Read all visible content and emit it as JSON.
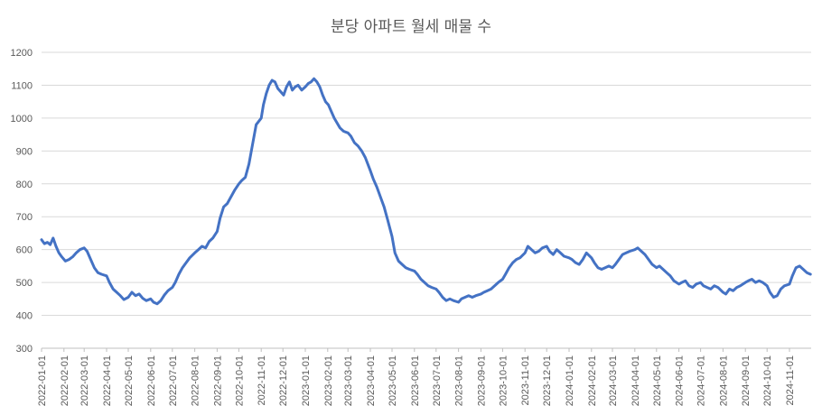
{
  "chart_data": {
    "type": "line",
    "title": "분당 아파트 월세 매물 수",
    "xlabel": "",
    "ylabel": "",
    "ylim": [
      300,
      1200
    ],
    "yticks": [
      300,
      400,
      500,
      600,
      700,
      800,
      900,
      1000,
      1100,
      1200
    ],
    "grid": true,
    "legend": "none",
    "x_tick_labels": [
      "2022-01-01",
      "2022-02-01",
      "2022-03-01",
      "2022-04-01",
      "2022-05-01",
      "2022-06-01",
      "2022-07-01",
      "2022-08-01",
      "2022-09-01",
      "2022-10-01",
      "2022-11-01",
      "2022-12-01",
      "2023-01-01",
      "2023-02-01",
      "2023-03-01",
      "2023-04-01",
      "2023-05-01",
      "2023-06-01",
      "2023-07-01",
      "2023-08-01",
      "2023-09-01",
      "2023-10-01",
      "2023-11-01",
      "2023-12-01",
      "2024-01-01",
      "2024-02-01",
      "2024-03-01",
      "2024-04-01",
      "2024-05-01",
      "2024-06-01",
      "2024-07-01",
      "2024-08-01",
      "2024-09-01",
      "2024-10-01",
      "2024-11-01"
    ],
    "x_range": [
      "2022-01-01",
      "2024-12-01"
    ],
    "series": [
      {
        "color": "#4472c4",
        "points": [
          [
            "2022-01-01",
            630
          ],
          [
            "2022-01-05",
            618
          ],
          [
            "2022-01-09",
            622
          ],
          [
            "2022-01-13",
            615
          ],
          [
            "2022-01-17",
            635
          ],
          [
            "2022-01-21",
            610
          ],
          [
            "2022-01-25",
            590
          ],
          [
            "2022-01-29",
            578
          ],
          [
            "2022-02-03",
            565
          ],
          [
            "2022-02-08",
            570
          ],
          [
            "2022-02-13",
            578
          ],
          [
            "2022-02-18",
            590
          ],
          [
            "2022-02-23",
            600
          ],
          [
            "2022-03-01",
            605
          ],
          [
            "2022-03-05",
            595
          ],
          [
            "2022-03-10",
            570
          ],
          [
            "2022-03-15",
            545
          ],
          [
            "2022-03-20",
            530
          ],
          [
            "2022-03-25",
            525
          ],
          [
            "2022-04-01",
            520
          ],
          [
            "2022-04-05",
            500
          ],
          [
            "2022-04-10",
            480
          ],
          [
            "2022-04-15",
            470
          ],
          [
            "2022-04-20",
            460
          ],
          [
            "2022-04-25",
            448
          ],
          [
            "2022-05-01",
            455
          ],
          [
            "2022-05-06",
            470
          ],
          [
            "2022-05-11",
            460
          ],
          [
            "2022-05-16",
            465
          ],
          [
            "2022-05-21",
            452
          ],
          [
            "2022-05-26",
            445
          ],
          [
            "2022-06-01",
            450
          ],
          [
            "2022-06-05",
            440
          ],
          [
            "2022-06-10",
            435
          ],
          [
            "2022-06-15",
            445
          ],
          [
            "2022-06-20",
            462
          ],
          [
            "2022-06-25",
            475
          ],
          [
            "2022-07-01",
            485
          ],
          [
            "2022-07-05",
            500
          ],
          [
            "2022-07-10",
            525
          ],
          [
            "2022-07-15",
            545
          ],
          [
            "2022-07-20",
            560
          ],
          [
            "2022-07-25",
            575
          ],
          [
            "2022-08-01",
            590
          ],
          [
            "2022-08-06",
            600
          ],
          [
            "2022-08-11",
            610
          ],
          [
            "2022-08-16",
            605
          ],
          [
            "2022-08-21",
            625
          ],
          [
            "2022-08-26",
            635
          ],
          [
            "2022-09-01",
            655
          ],
          [
            "2022-09-05",
            695
          ],
          [
            "2022-09-10",
            730
          ],
          [
            "2022-09-15",
            740
          ],
          [
            "2022-09-20",
            760
          ],
          [
            "2022-09-25",
            780
          ],
          [
            "2022-10-01",
            800
          ],
          [
            "2022-10-05",
            810
          ],
          [
            "2022-10-10",
            820
          ],
          [
            "2022-10-15",
            860
          ],
          [
            "2022-10-20",
            920
          ],
          [
            "2022-10-25",
            980
          ],
          [
            "2022-11-01",
            1000
          ],
          [
            "2022-11-04",
            1040
          ],
          [
            "2022-11-08",
            1075
          ],
          [
            "2022-11-12",
            1100
          ],
          [
            "2022-11-16",
            1115
          ],
          [
            "2022-11-20",
            1110
          ],
          [
            "2022-11-24",
            1090
          ],
          [
            "2022-11-28",
            1080
          ],
          [
            "2022-12-02",
            1070
          ],
          [
            "2022-12-06",
            1095
          ],
          [
            "2022-12-10",
            1110
          ],
          [
            "2022-12-14",
            1085
          ],
          [
            "2022-12-18",
            1095
          ],
          [
            "2022-12-22",
            1100
          ],
          [
            "2022-12-27",
            1085
          ],
          [
            "2023-01-01",
            1095
          ],
          [
            "2023-01-05",
            1105
          ],
          [
            "2023-01-09",
            1110
          ],
          [
            "2023-01-13",
            1120
          ],
          [
            "2023-01-17",
            1110
          ],
          [
            "2023-01-21",
            1095
          ],
          [
            "2023-01-25",
            1070
          ],
          [
            "2023-01-29",
            1050
          ],
          [
            "2023-02-02",
            1040
          ],
          [
            "2023-02-06",
            1020
          ],
          [
            "2023-02-10",
            1000
          ],
          [
            "2023-02-14",
            985
          ],
          [
            "2023-02-18",
            970
          ],
          [
            "2023-02-23",
            960
          ],
          [
            "2023-03-01",
            955
          ],
          [
            "2023-03-05",
            945
          ],
          [
            "2023-03-10",
            925
          ],
          [
            "2023-03-15",
            915
          ],
          [
            "2023-03-20",
            900
          ],
          [
            "2023-03-25",
            880
          ],
          [
            "2023-04-01",
            840
          ],
          [
            "2023-04-05",
            815
          ],
          [
            "2023-04-10",
            790
          ],
          [
            "2023-04-15",
            760
          ],
          [
            "2023-04-20",
            730
          ],
          [
            "2023-04-25",
            690
          ],
          [
            "2023-05-01",
            640
          ],
          [
            "2023-05-05",
            590
          ],
          [
            "2023-05-10",
            565
          ],
          [
            "2023-05-15",
            555
          ],
          [
            "2023-05-20",
            545
          ],
          [
            "2023-05-25",
            540
          ],
          [
            "2023-06-01",
            535
          ],
          [
            "2023-06-05",
            525
          ],
          [
            "2023-06-10",
            510
          ],
          [
            "2023-06-15",
            500
          ],
          [
            "2023-06-20",
            490
          ],
          [
            "2023-06-25",
            485
          ],
          [
            "2023-07-01",
            480
          ],
          [
            "2023-07-05",
            470
          ],
          [
            "2023-07-10",
            455
          ],
          [
            "2023-07-15",
            445
          ],
          [
            "2023-07-20",
            450
          ],
          [
            "2023-07-25",
            445
          ],
          [
            "2023-08-01",
            440
          ],
          [
            "2023-08-05",
            450
          ],
          [
            "2023-08-10",
            455
          ],
          [
            "2023-08-15",
            460
          ],
          [
            "2023-08-20",
            455
          ],
          [
            "2023-08-25",
            460
          ],
          [
            "2023-09-01",
            465
          ],
          [
            "2023-09-05",
            470
          ],
          [
            "2023-09-10",
            475
          ],
          [
            "2023-09-15",
            480
          ],
          [
            "2023-09-20",
            490
          ],
          [
            "2023-09-25",
            500
          ],
          [
            "2023-10-01",
            510
          ],
          [
            "2023-10-05",
            525
          ],
          [
            "2023-10-10",
            545
          ],
          [
            "2023-10-15",
            560
          ],
          [
            "2023-10-20",
            570
          ],
          [
            "2023-10-25",
            575
          ],
          [
            "2023-11-01",
            590
          ],
          [
            "2023-11-05",
            610
          ],
          [
            "2023-11-10",
            600
          ],
          [
            "2023-11-15",
            590
          ],
          [
            "2023-11-20",
            595
          ],
          [
            "2023-11-25",
            605
          ],
          [
            "2023-12-01",
            610
          ],
          [
            "2023-12-05",
            595
          ],
          [
            "2023-12-10",
            585
          ],
          [
            "2023-12-15",
            600
          ],
          [
            "2023-12-20",
            590
          ],
          [
            "2023-12-25",
            580
          ],
          [
            "2024-01-01",
            575
          ],
          [
            "2024-01-05",
            570
          ],
          [
            "2024-01-10",
            560
          ],
          [
            "2024-01-15",
            555
          ],
          [
            "2024-01-20",
            570
          ],
          [
            "2024-01-25",
            590
          ],
          [
            "2024-02-01",
            575
          ],
          [
            "2024-02-05",
            560
          ],
          [
            "2024-02-10",
            545
          ],
          [
            "2024-02-15",
            540
          ],
          [
            "2024-02-20",
            545
          ],
          [
            "2024-02-25",
            550
          ],
          [
            "2024-03-01",
            545
          ],
          [
            "2024-03-05",
            555
          ],
          [
            "2024-03-10",
            570
          ],
          [
            "2024-03-15",
            585
          ],
          [
            "2024-03-20",
            590
          ],
          [
            "2024-03-25",
            595
          ],
          [
            "2024-04-01",
            600
          ],
          [
            "2024-04-05",
            605
          ],
          [
            "2024-04-10",
            595
          ],
          [
            "2024-04-15",
            585
          ],
          [
            "2024-04-20",
            570
          ],
          [
            "2024-04-25",
            555
          ],
          [
            "2024-05-01",
            545
          ],
          [
            "2024-05-05",
            550
          ],
          [
            "2024-05-10",
            540
          ],
          [
            "2024-05-15",
            530
          ],
          [
            "2024-05-20",
            520
          ],
          [
            "2024-05-25",
            505
          ],
          [
            "2024-06-01",
            495
          ],
          [
            "2024-06-05",
            500
          ],
          [
            "2024-06-10",
            505
          ],
          [
            "2024-06-15",
            490
          ],
          [
            "2024-06-20",
            485
          ],
          [
            "2024-06-25",
            495
          ],
          [
            "2024-07-01",
            500
          ],
          [
            "2024-07-05",
            490
          ],
          [
            "2024-07-10",
            485
          ],
          [
            "2024-07-15",
            480
          ],
          [
            "2024-07-20",
            490
          ],
          [
            "2024-07-25",
            485
          ],
          [
            "2024-08-01",
            470
          ],
          [
            "2024-08-05",
            465
          ],
          [
            "2024-08-10",
            480
          ],
          [
            "2024-08-15",
            475
          ],
          [
            "2024-08-20",
            485
          ],
          [
            "2024-08-25",
            490
          ],
          [
            "2024-09-01",
            500
          ],
          [
            "2024-09-05",
            505
          ],
          [
            "2024-09-10",
            510
          ],
          [
            "2024-09-15",
            500
          ],
          [
            "2024-09-20",
            505
          ],
          [
            "2024-09-25",
            500
          ],
          [
            "2024-10-01",
            490
          ],
          [
            "2024-10-05",
            470
          ],
          [
            "2024-10-10",
            455
          ],
          [
            "2024-10-15",
            460
          ],
          [
            "2024-10-20",
            480
          ],
          [
            "2024-10-25",
            490
          ],
          [
            "2024-11-01",
            495
          ],
          [
            "2024-11-05",
            520
          ],
          [
            "2024-11-10",
            545
          ],
          [
            "2024-11-15",
            550
          ],
          [
            "2024-11-20",
            540
          ],
          [
            "2024-11-25",
            530
          ],
          [
            "2024-11-30",
            525
          ]
        ]
      }
    ]
  }
}
